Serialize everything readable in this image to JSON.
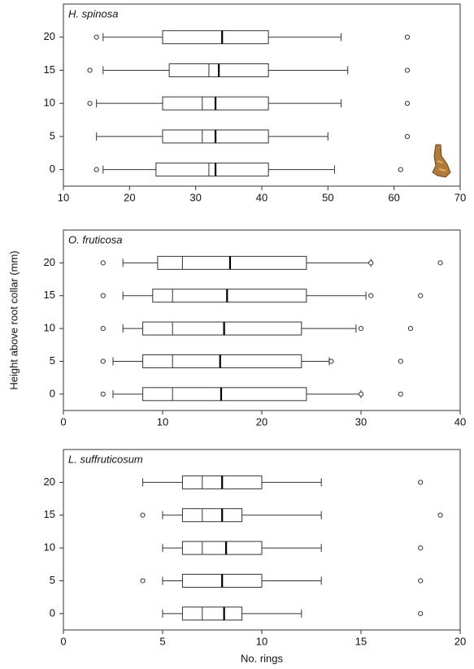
{
  "chart_data": [
    {
      "type": "boxplot",
      "title": "H. spinosa",
      "categories": [
        "0",
        "5",
        "10",
        "15",
        "20"
      ],
      "boxes": [
        {
          "whisker_low": 16,
          "q1": 24,
          "median": 32,
          "mean": 33,
          "q3": 41,
          "whisker_high": 51,
          "outliers": [
            15,
            61
          ]
        },
        {
          "whisker_low": 15,
          "q1": 25,
          "median": 31,
          "mean": 33,
          "q3": 41,
          "whisker_high": 50,
          "outliers": [
            62
          ]
        },
        {
          "whisker_low": 15,
          "q1": 25,
          "median": 31,
          "mean": 33,
          "q3": 41,
          "whisker_high": 52,
          "outliers": [
            14,
            62
          ]
        },
        {
          "whisker_low": 16,
          "q1": 26,
          "median": 32,
          "mean": 33.5,
          "q3": 41,
          "whisker_high": 53,
          "outliers": [
            14,
            62
          ]
        },
        {
          "whisker_low": 16,
          "q1": 25,
          "median": 34,
          "mean": 34,
          "q3": 41,
          "whisker_high": 52,
          "outliers": [
            15,
            62
          ]
        }
      ],
      "xlim": [
        10,
        70
      ],
      "xticks": [
        10,
        20,
        30,
        40,
        50,
        60,
        70
      ]
    },
    {
      "type": "boxplot",
      "title": "O. fruticosa",
      "ylabel": "Height above root collar (mm)",
      "categories": [
        "0",
        "5",
        "10",
        "15",
        "20"
      ],
      "boxes": [
        {
          "whisker_low": 5,
          "q1": 8,
          "median": 11,
          "mean": 15.9,
          "q3": 24.5,
          "whisker_high": 30,
          "outliers": [
            4,
            30,
            34
          ]
        },
        {
          "whisker_low": 5,
          "q1": 8,
          "median": 11,
          "mean": 15.8,
          "q3": 24,
          "whisker_high": 26.8,
          "outliers": [
            4,
            27,
            34
          ]
        },
        {
          "whisker_low": 6,
          "q1": 8,
          "median": 11,
          "mean": 16.2,
          "q3": 24,
          "whisker_high": 29.5,
          "outliers": [
            4,
            30,
            35
          ]
        },
        {
          "whisker_low": 6,
          "q1": 9,
          "median": 11,
          "mean": 16.5,
          "q3": 24.5,
          "whisker_high": 30.5,
          "outliers": [
            4,
            31,
            36
          ]
        },
        {
          "whisker_low": 6,
          "q1": 9.5,
          "median": 12,
          "mean": 16.8,
          "q3": 24.5,
          "whisker_high": 31,
          "outliers": [
            4,
            31,
            38
          ]
        }
      ],
      "xlim": [
        0,
        40
      ],
      "xticks": [
        0,
        10,
        20,
        30,
        40
      ]
    },
    {
      "type": "boxplot",
      "title": "L. suffruticosum",
      "xlabel": "No. rings",
      "categories": [
        "0",
        "5",
        "10",
        "15",
        "20"
      ],
      "boxes": [
        {
          "whisker_low": 5,
          "q1": 6,
          "median": 7,
          "mean": 8.1,
          "q3": 9,
          "whisker_high": 12,
          "outliers": [
            18
          ]
        },
        {
          "whisker_low": 5,
          "q1": 6,
          "median": 8,
          "mean": 8,
          "q3": 10,
          "whisker_high": 13,
          "outliers": [
            4,
            18
          ]
        },
        {
          "whisker_low": 5,
          "q1": 6,
          "median": 7,
          "mean": 8.2,
          "q3": 10,
          "whisker_high": 13,
          "outliers": [
            18
          ]
        },
        {
          "whisker_low": 5,
          "q1": 6,
          "median": 7,
          "mean": 8,
          "q3": 9,
          "whisker_high": 13,
          "outliers": [
            4,
            19
          ]
        },
        {
          "whisker_low": 4,
          "q1": 6,
          "median": 7,
          "mean": 8,
          "q3": 10,
          "whisker_high": 13,
          "outliers": [
            18
          ]
        }
      ],
      "xlim": [
        0,
        20
      ],
      "xticks": [
        0,
        5,
        10,
        15,
        20
      ]
    }
  ]
}
